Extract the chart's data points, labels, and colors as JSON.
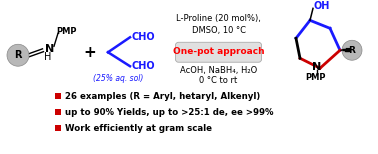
{
  "background_color": "#ffffff",
  "box_text": "One-pot approach",
  "box_text_color": "#ff0000",
  "top_text_line1": "L-Proline (20 mol%),",
  "top_text_line2": "DMSO, 10 °C",
  "bottom_text_line1": "AcOH, NaBH₄, H₂O",
  "bottom_text_line2": "0 °C to rt",
  "bullet_color": "#ff0000",
  "bullets": [
    "26 examples (R = Aryl, hetaryl, Alkenyl)",
    "up to 90% Yields, up to >25:1 de, ee >99%",
    "Work efficiently at gram scale"
  ],
  "gray": "#b8b8b8",
  "blue": "#1a1aff",
  "black": "#000000",
  "red": "#cc0000",
  "plus_sign": "+",
  "figsize": [
    3.78,
    1.54
  ],
  "dpi": 100
}
